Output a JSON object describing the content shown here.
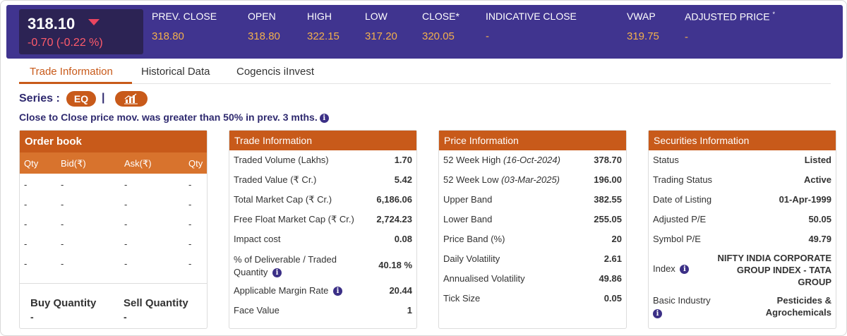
{
  "quote": {
    "ltp": "318.10",
    "change": "-0.70 (-0.22 %)",
    "columns": [
      {
        "label": "PREV. CLOSE",
        "value": "318.80"
      },
      {
        "label": "OPEN",
        "value": "318.80"
      },
      {
        "label": "HIGH",
        "value": "322.15"
      },
      {
        "label": "LOW",
        "value": "317.20"
      },
      {
        "label": "CLOSE*",
        "value": "320.05"
      },
      {
        "label": "INDICATIVE CLOSE",
        "value": "-"
      },
      {
        "label": "VWAP",
        "value": "319.75"
      },
      {
        "label": "ADJUSTED PRICE",
        "star": "*",
        "value": "-"
      }
    ],
    "direction_icon": "triangle-down-icon",
    "colors": {
      "bar": "#40348f",
      "ltp_box": "#2c2354",
      "negative": "#ff5b6b",
      "values": "#f2b04c"
    }
  },
  "tabs": [
    "Trade Information",
    "Historical Data",
    "Cogencis iInvest"
  ],
  "active_tab": "Trade Information",
  "series": {
    "label": "Series :",
    "value": "EQ",
    "separator": "|",
    "chart_icon": "bar-chart-icon"
  },
  "alert": "Close to Close price mov. was greater than 50% in prev. 3 mths.",
  "order_book": {
    "title": "Order book",
    "columns": [
      "Qty",
      "Bid(₹)",
      "Ask(₹)",
      "Qty"
    ],
    "rows": [
      [
        "-",
        "-",
        "-",
        "-"
      ],
      [
        "-",
        "-",
        "-",
        "-"
      ],
      [
        "-",
        "-",
        "-",
        "-"
      ],
      [
        "-",
        "-",
        "-",
        "-"
      ],
      [
        "-",
        "-",
        "-",
        "-"
      ]
    ],
    "buy_label": "Buy Quantity",
    "buy_value": "-",
    "sell_label": "Sell Quantity",
    "sell_value": "-"
  },
  "trade_info": {
    "title": "Trade Information",
    "rows": [
      {
        "label": "Traded Volume (Lakhs)",
        "value": "1.70"
      },
      {
        "label": "Traded Value (₹ Cr.)",
        "value": "5.42"
      },
      {
        "label": "Total Market Cap (₹ Cr.)",
        "value": "6,186.06"
      },
      {
        "label": "Free Float Market Cap (₹ Cr.)",
        "value": "2,724.23"
      },
      {
        "label": "Impact cost",
        "value": "0.08"
      },
      {
        "label1": "% of Deliverable / Traded",
        "label2": "Quantity",
        "value": "40.18 %"
      },
      {
        "label": "Applicable Margin Rate",
        "value": "20.44"
      },
      {
        "label": "Face Value",
        "value": "1"
      }
    ]
  },
  "price_info": {
    "title": "Price Information",
    "rows": [
      {
        "label": "52 Week High",
        "date": "(16-Oct-2024)",
        "value": "378.70"
      },
      {
        "label": "52 Week Low",
        "date": "(03-Mar-2025)",
        "value": "196.00"
      },
      {
        "label": "Upper Band",
        "value": "382.55"
      },
      {
        "label": "Lower Band",
        "value": "255.05"
      },
      {
        "label": "Price Band (%)",
        "value": "20"
      },
      {
        "label": "Daily Volatility",
        "value": "2.61"
      },
      {
        "label": "Annualised Volatility",
        "value": "49.86"
      },
      {
        "label": "Tick Size",
        "value": "0.05"
      }
    ]
  },
  "securities_info": {
    "title": "Securities Information",
    "rows": [
      {
        "label": "Status",
        "value": "Listed"
      },
      {
        "label": "Trading Status",
        "value": "Active"
      },
      {
        "label": "Date of Listing",
        "value": "01-Apr-1999"
      },
      {
        "label": "Adjusted P/E",
        "value": "50.05"
      },
      {
        "label": "Symbol P/E",
        "value": "49.79"
      }
    ],
    "index_label": "Index",
    "index_value": [
      "NIFTY INDIA CORPORATE",
      "GROUP INDEX - TATA",
      "GROUP"
    ],
    "industry_label": "Basic Industry",
    "industry_value": [
      "Pesticides &",
      "Agrochemicals"
    ]
  }
}
